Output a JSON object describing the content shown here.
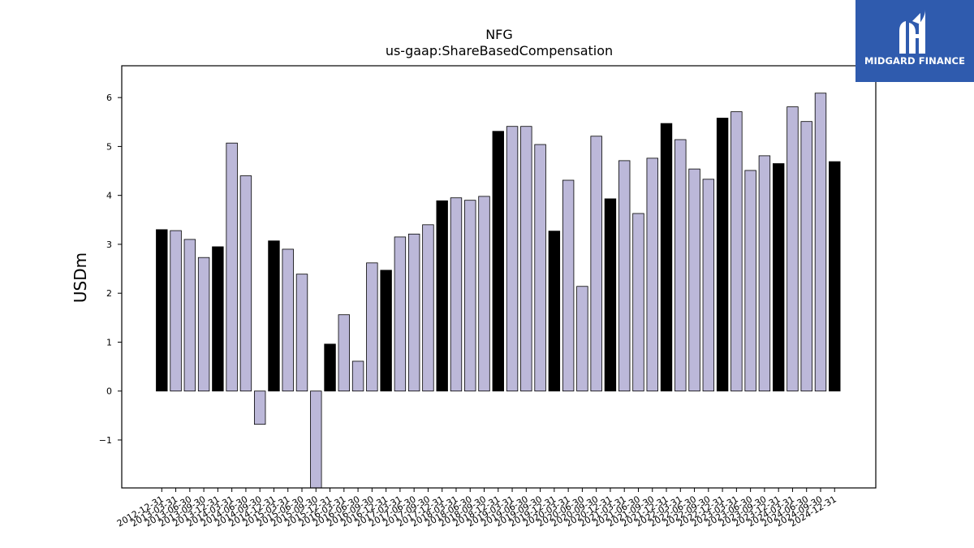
{
  "chart_data": {
    "type": "bar",
    "title": "NFG",
    "subtitle": "us-gaap:ShareBasedCompensation",
    "ylabel": "USDm",
    "ylim": [
      -1.98,
      6.65
    ],
    "yticks": [
      -1,
      0,
      1,
      2,
      3,
      4,
      5,
      6
    ],
    "colors": {
      "annual": "#000000",
      "quarterly": "#bcb8d9",
      "edge": "#000000"
    },
    "categories": [
      "2012-12-31",
      "2013-03-31",
      "2013-06-30",
      "2013-09-30",
      "2013-12-31",
      "2014-03-31",
      "2014-06-30",
      "2014-09-30",
      "2014-12-31",
      "2015-03-31",
      "2015-06-30",
      "2015-09-30",
      "2015-12-31",
      "2016-03-31",
      "2016-06-30",
      "2016-09-30",
      "2016-12-31",
      "2017-03-31",
      "2017-06-30",
      "2017-09-30",
      "2017-12-31",
      "2018-03-31",
      "2018-06-30",
      "2018-09-30",
      "2018-12-31",
      "2019-03-31",
      "2019-06-30",
      "2019-09-30",
      "2019-12-31",
      "2020-03-31",
      "2020-06-30",
      "2020-09-30",
      "2020-12-31",
      "2021-03-31",
      "2021-06-30",
      "2021-09-30",
      "2021-12-31",
      "2022-03-31",
      "2022-06-30",
      "2022-09-30",
      "2022-12-31",
      "2023-03-31",
      "2023-06-30",
      "2023-09-30",
      "2023-12-31",
      "2024-03-31",
      "2024-06-30",
      "2024-09-30",
      "2024-12-31"
    ],
    "values": [
      3.3,
      3.28,
      3.1,
      2.73,
      2.95,
      5.07,
      4.4,
      -0.68,
      3.07,
      2.9,
      2.39,
      -1.98,
      0.96,
      1.56,
      0.61,
      2.62,
      2.47,
      3.15,
      3.21,
      3.4,
      3.89,
      3.95,
      3.9,
      3.98,
      5.31,
      5.41,
      5.41,
      5.04,
      3.27,
      4.31,
      2.14,
      5.21,
      3.93,
      4.71,
      3.63,
      4.76,
      5.47,
      5.14,
      4.54,
      4.33,
      5.58,
      5.71,
      4.51,
      4.81,
      4.65,
      5.81,
      5.51,
      6.09,
      4.69
    ],
    "annual": [
      true,
      false,
      false,
      false,
      true,
      false,
      false,
      false,
      true,
      false,
      false,
      false,
      true,
      false,
      false,
      false,
      true,
      false,
      false,
      false,
      true,
      false,
      false,
      false,
      true,
      false,
      false,
      false,
      true,
      false,
      false,
      false,
      true,
      false,
      false,
      false,
      true,
      false,
      false,
      false,
      true,
      false,
      false,
      false,
      true,
      false,
      false,
      false,
      true
    ]
  },
  "logo": {
    "text": "MIDGARD FINANCE",
    "color": "#2f5bae"
  }
}
